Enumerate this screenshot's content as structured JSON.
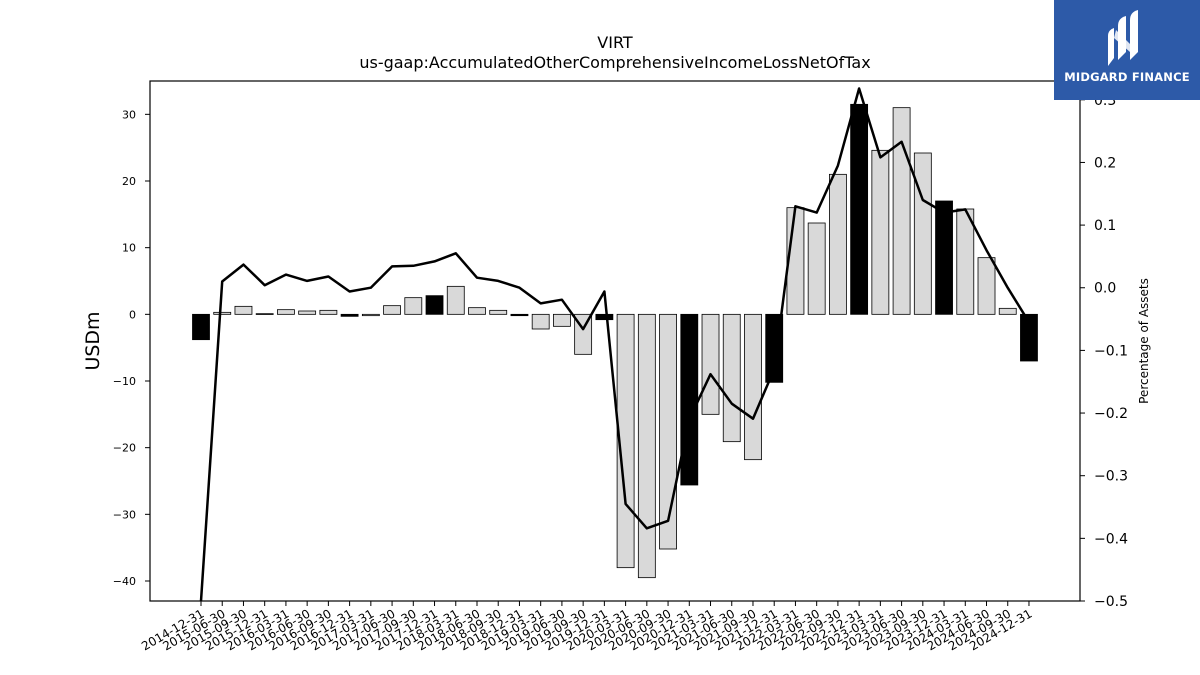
{
  "brand": {
    "name": "MIDGARD FINANCE",
    "bg_color": "#2d5aa8"
  },
  "chart_data": {
    "type": "bar",
    "title": "VIRT",
    "subtitle": "us-gaap:AccumulatedOtherComprehensiveIncomeLossNetOfTax",
    "ylabel": "USDm",
    "y2label": "Percentage of Assets",
    "ylim": [
      -43,
      35
    ],
    "y2lim": [
      -0.5,
      0.33
    ],
    "yticks": [
      -40,
      -30,
      -20,
      -10,
      0,
      10,
      20,
      30
    ],
    "y2ticks": [
      -0.5,
      -0.4,
      -0.3,
      -0.2,
      -0.1,
      0.0,
      0.1,
      0.2,
      0.3
    ],
    "categories": [
      "2014-12-31",
      "2015-06-30",
      "2015-09-30",
      "2015-12-31",
      "2016-03-31",
      "2016-06-30",
      "2016-09-30",
      "2016-12-31",
      "2017-03-31",
      "2017-06-30",
      "2017-09-30",
      "2017-12-31",
      "2018-03-31",
      "2018-06-30",
      "2018-09-30",
      "2018-12-31",
      "2019-03-31",
      "2019-06-30",
      "2019-09-30",
      "2019-12-31",
      "2020-03-31",
      "2020-06-30",
      "2020-09-30",
      "2020-12-31",
      "2021-03-31",
      "2021-06-30",
      "2021-09-30",
      "2021-12-31",
      "2022-03-31",
      "2022-06-30",
      "2022-09-30",
      "2022-12-31",
      "2023-03-31",
      "2023-06-30",
      "2023-09-30",
      "2023-12-31",
      "2024-03-31",
      "2024-06-30",
      "2024-09-30",
      "2024-12-31"
    ],
    "series": [
      {
        "type": "bar",
        "values": [
          -3.8,
          0.3,
          1.2,
          0.1,
          0.7,
          0.5,
          0.6,
          -0.3,
          -0.2,
          1.3,
          2.5,
          2.8,
          4.2,
          1.0,
          0.6,
          -0.2,
          -2.2,
          -1.8,
          -6.0,
          -0.8,
          -38.0,
          -39.5,
          -35.2,
          -25.6,
          -15.0,
          -19.1,
          -21.8,
          -10.2,
          16.0,
          13.7,
          21.0,
          31.5,
          24.6,
          31.0,
          24.2,
          17.0,
          15.8,
          8.5,
          0.9,
          -7.0
        ],
        "highlight": [
          true,
          false,
          false,
          false,
          false,
          false,
          false,
          true,
          false,
          false,
          false,
          true,
          false,
          false,
          false,
          true,
          false,
          false,
          false,
          true,
          false,
          false,
          false,
          true,
          false,
          false,
          false,
          true,
          false,
          false,
          false,
          true,
          false,
          false,
          false,
          true,
          false,
          false,
          false,
          true
        ]
      },
      {
        "type": "line",
        "axis": "right",
        "values": [
          -0.5,
          0.01,
          0.037,
          0.004,
          0.021,
          0.011,
          0.018,
          -0.006,
          0.0,
          0.034,
          0.035,
          0.042,
          0.055,
          0.016,
          0.011,
          0.0,
          -0.025,
          -0.019,
          -0.066,
          -0.006,
          -0.345,
          -0.384,
          -0.372,
          -0.21,
          -0.138,
          -0.185,
          -0.209,
          -0.13,
          0.13,
          0.12,
          0.195,
          0.318,
          0.208,
          0.233,
          0.14,
          0.12,
          0.125,
          0.06,
          0.0,
          -0.055
        ]
      }
    ],
    "colors": {
      "bar": "#d9d9d9",
      "highlight": "#000000",
      "line": "#000000"
    }
  }
}
